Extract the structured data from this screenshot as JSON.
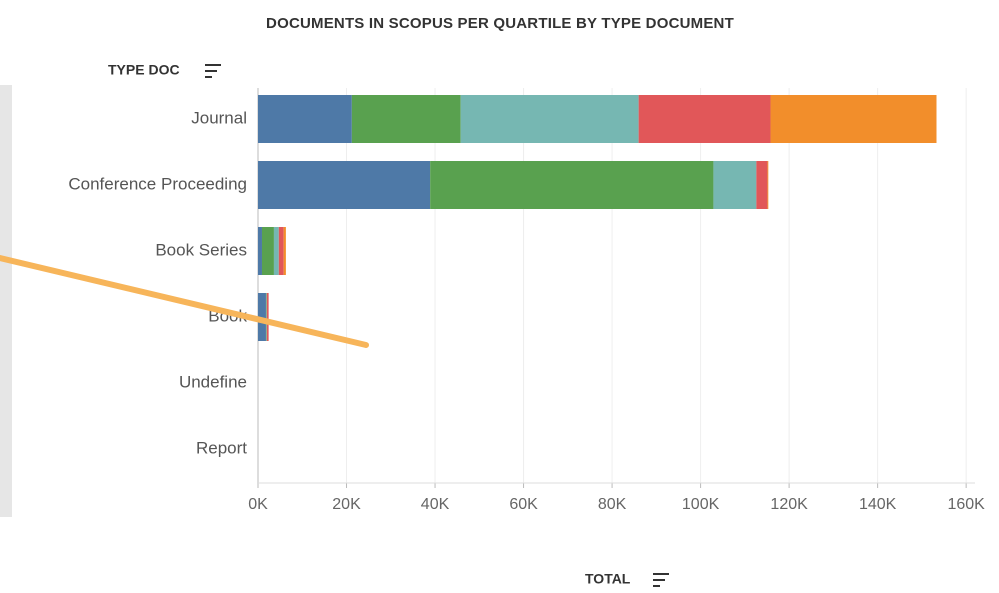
{
  "chart_data": {
    "type": "stacked-barh",
    "title": "DOCUMENTS IN SCOPUS PER QUARTILE BY TYPE DOCUMENT",
    "y_label": "TYPE DOC",
    "x_label": "TOTAL",
    "categories": [
      "Journal",
      "Conference Proceeding",
      "Book Series",
      "Book",
      "Undefine",
      "Report"
    ],
    "series": [
      {
        "color": "#4e79a7",
        "values": [
          21200,
          38900,
          900,
          1800,
          0,
          0
        ]
      },
      {
        "color": "#59a14f",
        "values": [
          24600,
          64000,
          2700,
          100,
          0,
          0
        ]
      },
      {
        "color": "#76b7b2",
        "values": [
          40200,
          9700,
          1100,
          100,
          0,
          0
        ]
      },
      {
        "color": "#e15759",
        "values": [
          29800,
          2500,
          1100,
          400,
          0,
          0
        ]
      },
      {
        "color": "#f28e2b",
        "values": [
          37500,
          200,
          500,
          0,
          0,
          0
        ]
      }
    ],
    "xlim": [
      0,
      162000
    ],
    "xticks": [
      {
        "value": 0,
        "label": "0K"
      },
      {
        "value": 20000,
        "label": "20K"
      },
      {
        "value": 40000,
        "label": "40K"
      },
      {
        "value": 60000,
        "label": "60K"
      },
      {
        "value": 80000,
        "label": "80K"
      },
      {
        "value": 100000,
        "label": "100K"
      },
      {
        "value": 120000,
        "label": "120K"
      },
      {
        "value": 140000,
        "label": "140K"
      },
      {
        "value": 160000,
        "label": "160K"
      }
    ],
    "grid": true
  }
}
